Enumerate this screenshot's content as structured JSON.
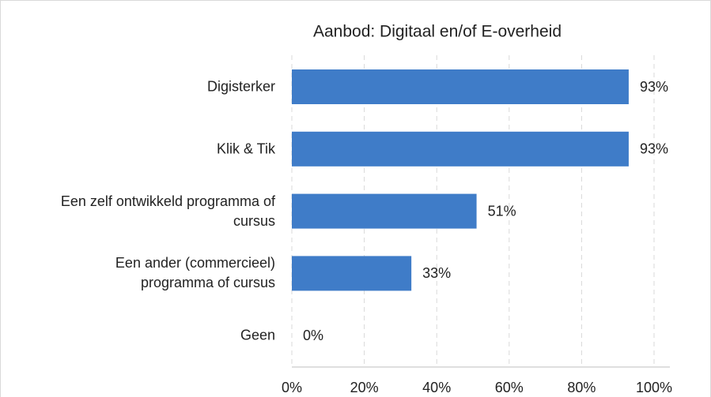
{
  "chart_data": {
    "type": "bar",
    "orientation": "horizontal",
    "title": "Aanbod: Digitaal en/of E-overheid",
    "categories": [
      "Digisterker",
      "Klik & Tik",
      "Een zelf ontwikkeld programma of\ncursus",
      "Een ander (commercieel)\nprogramma of cursus",
      "Geen"
    ],
    "values": [
      93,
      93,
      51,
      33,
      0
    ],
    "value_labels": [
      "93%",
      "93%",
      "51%",
      "33%",
      "0%"
    ],
    "color": "#3f7cc8",
    "xlim": [
      0,
      100
    ],
    "xticks": [
      {
        "value": 0,
        "label": "0%"
      },
      {
        "value": 20,
        "label": "20%"
      },
      {
        "value": 40,
        "label": "40%"
      },
      {
        "value": 60,
        "label": "60%"
      },
      {
        "value": 80,
        "label": "80%"
      },
      {
        "value": 100,
        "label": "100%"
      }
    ],
    "grid": true
  }
}
